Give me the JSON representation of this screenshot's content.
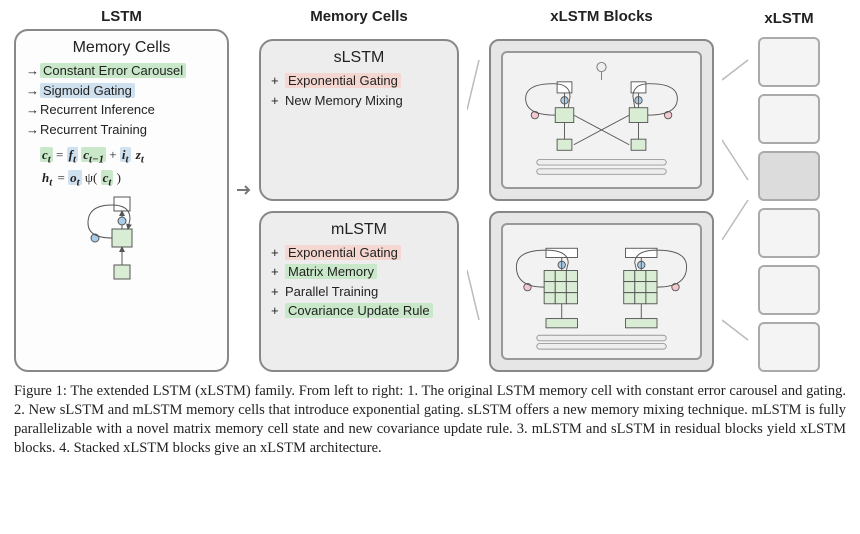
{
  "headers": {
    "lstm": "LSTM",
    "mem": "Memory Cells",
    "blocks": "xLSTM Blocks",
    "xlstm": "xLSTM"
  },
  "lstm_panel": {
    "title": "Memory Cells",
    "items": [
      {
        "prefix": "→ ",
        "text": "Constant Error Carousel",
        "hl": "#c9e8c9"
      },
      {
        "prefix": "→ ",
        "text": "Sigmoid Gating",
        "hl": "#cfe0ef"
      },
      {
        "prefix": "→ ",
        "text": "Recurrent Inference",
        "hl": null
      },
      {
        "prefix": "→ ",
        "text": "Recurrent Training",
        "hl": null
      }
    ],
    "eq1_parts": [
      "c",
      "t",
      " = ",
      "f",
      "t",
      " c",
      "t−1",
      " + ",
      "i",
      "t",
      " z",
      "t"
    ],
    "eq2_parts": [
      "h",
      "t",
      " = ",
      "o",
      "t",
      " ψ( ",
      "c",
      "t",
      " )"
    ]
  },
  "slstm_panel": {
    "title": "sLSTM",
    "items": [
      {
        "prefix": "+ ",
        "text": "Exponential Gating",
        "hl": "#f3d7d0"
      },
      {
        "prefix": "+ ",
        "text": "New Memory Mixing",
        "hl": null
      }
    ]
  },
  "mlstm_panel": {
    "title": "mLSTM",
    "items": [
      {
        "prefix": "+ ",
        "text": "Exponential Gating",
        "hl": "#f3d7d0"
      },
      {
        "prefix": "+ ",
        "text": "Matrix Memory",
        "hl": "#c9e8c9"
      },
      {
        "prefix": "+ ",
        "text": "Parallel Training",
        "hl": null
      },
      {
        "prefix": "+ ",
        "text": "Covariance Update Rule",
        "hl": "#c9e8c9"
      }
    ]
  },
  "colors": {
    "panel_border": "#888888",
    "panel_bg_light": "#fdfdfd",
    "panel_bg_grey": "#ededed",
    "block_bg": "#e6e6e6",
    "node_green": "#d9ecd4",
    "node_white": "#ffffff",
    "dot_blue": "#a9cce8",
    "dot_pink": "#f3c9cf",
    "stroke": "#555555"
  },
  "stack": {
    "count": 6,
    "highlighted_index": 2,
    "bg_normal": "#f4f4f4",
    "bg_hl": "#dcdcdc"
  },
  "caption": "Figure 1: The extended LSTM (xLSTM) family. From left to right: 1. The original LSTM memory cell with constant error carousel and gating. 2. New sLSTM and mLSTM memory cells that introduce exponential gating. sLSTM offers a new memory mixing technique. mLSTM is fully parallelizable with a novel matrix memory cell state and new covariance update rule. 3. mLSTM and sLSTM in residual blocks yield xLSTM blocks. 4. Stacked xLSTM blocks give an xLSTM architecture."
}
